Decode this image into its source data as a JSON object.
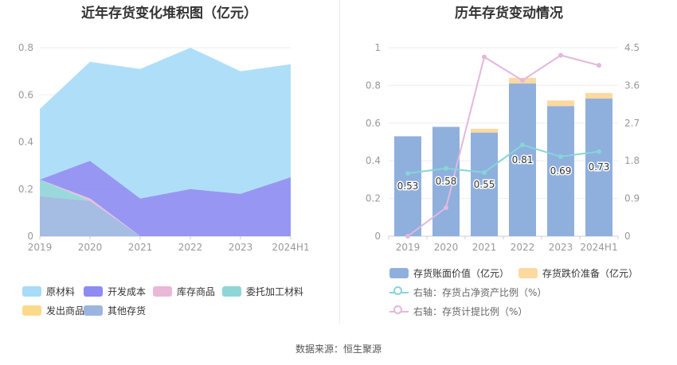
{
  "source_label": "数据来源：恒生聚源",
  "chart_data": [
    {
      "type": "area",
      "title": "近年存货变化堆积图（亿元）",
      "categories": [
        "2019",
        "2020",
        "2021",
        "2022",
        "2023",
        "2024H1"
      ],
      "ylim": [
        0,
        0.8
      ],
      "yticks": [
        "0",
        "0.2",
        "0.4",
        "0.6",
        "0.8"
      ],
      "grid": true,
      "legend_position": "bottom",
      "series": [
        {
          "name": "原材料",
          "color": "#a6dcf7",
          "values": [
            0.3,
            0.42,
            0.55,
            0.6,
            0.52,
            0.48
          ]
        },
        {
          "name": "开发成本",
          "color": "#8c8cf2",
          "values": [
            0.0,
            0.16,
            0.16,
            0.2,
            0.18,
            0.25
          ]
        },
        {
          "name": "库存商品",
          "color": "#e9b8d8",
          "values": [
            0.0,
            0.01,
            0.0,
            0.0,
            0.0,
            0.0
          ]
        },
        {
          "name": "委托加工材料",
          "color": "#8ed5d8",
          "values": [
            0.07,
            0.0,
            0.0,
            0.0,
            0.0,
            0.0
          ]
        },
        {
          "name": "发出商品",
          "color": "#fdd98b",
          "values": [
            0,
            0,
            0,
            0,
            0,
            0
          ]
        },
        {
          "name": "其他存货",
          "color": "#9bb5e0",
          "values": [
            0.17,
            0.15,
            0.0,
            0.0,
            0.0,
            0.0
          ]
        }
      ]
    },
    {
      "type": "bar",
      "title": "历年存货变动情况",
      "categories": [
        "2019",
        "2020",
        "2021",
        "2022",
        "2023",
        "2024H1"
      ],
      "ylim": [
        0,
        1
      ],
      "yticks": [
        "0",
        "0.2",
        "0.4",
        "0.6",
        "0.8",
        "1"
      ],
      "y2lim": [
        0,
        4.5
      ],
      "y2ticks": [
        "0",
        "0.9",
        "1.8",
        "2.7",
        "3.6",
        "4.5"
      ],
      "grid": true,
      "legend_position": "bottom",
      "series": [
        {
          "name": "存货账面价值（亿元）",
          "kind": "bar",
          "color": "#8fb0dd",
          "values": [
            0.53,
            0.58,
            0.55,
            0.81,
            0.69,
            0.73
          ],
          "labels": [
            "0.53",
            "0.58",
            "0.55",
            "0.81",
            "0.69",
            "0.73"
          ]
        },
        {
          "name": "存货跌价准备（亿元）",
          "kind": "bar",
          "color": "#fdd9a0",
          "values": [
            0.0,
            0.0,
            0.02,
            0.03,
            0.03,
            0.03
          ]
        },
        {
          "name": "右轴：存货占净资产比例（%）",
          "kind": "line",
          "axis": "right",
          "color": "#86d5d8",
          "values": [
            1.5,
            1.62,
            1.52,
            2.18,
            1.9,
            2.02
          ]
        },
        {
          "name": "右轴：存货计提比例（%）",
          "kind": "line",
          "axis": "right",
          "color": "#e2b8dd",
          "values": [
            0.0,
            0.68,
            4.28,
            3.72,
            4.32,
            4.08
          ]
        }
      ]
    }
  ]
}
